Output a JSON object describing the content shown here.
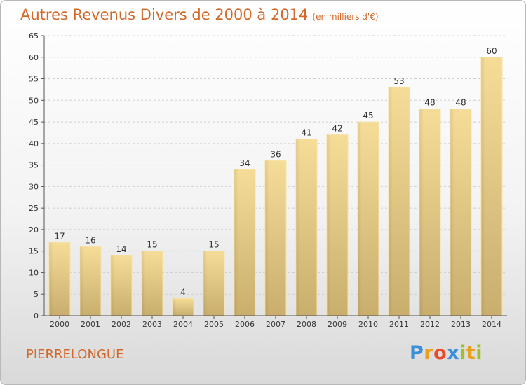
{
  "title": "Autres Revenus Divers de 2000 à 2014",
  "subtitle": "(en milliers d'€)",
  "place": "PIERRELONGUE",
  "brand": {
    "letters": [
      "P",
      "r",
      "o",
      "x",
      "i",
      "t",
      "i"
    ],
    "colors": [
      "#3b8fd8",
      "#e8a020",
      "#e84a2a",
      "#3b8fd8",
      "#9bc22c",
      "#e8a020",
      "#9bc22c"
    ]
  },
  "chart_data": {
    "type": "bar",
    "categories": [
      "2000",
      "2001",
      "2002",
      "2003",
      "2004",
      "2005",
      "2006",
      "2007",
      "2008",
      "2009",
      "2010",
      "2011",
      "2012",
      "2013",
      "2014"
    ],
    "values": [
      17,
      16,
      14,
      15,
      4,
      15,
      34,
      36,
      41,
      42,
      45,
      53,
      48,
      48,
      60
    ],
    "title": "Autres Revenus Divers de 2000 à 2014",
    "subtitle": "(en milliers d'€)",
    "ylim": [
      0,
      65
    ],
    "yticks": [
      0,
      5,
      10,
      15,
      20,
      25,
      30,
      35,
      40,
      45,
      50,
      55,
      60,
      65
    ],
    "grid": true,
    "bar_color": "#e8cf8a"
  }
}
